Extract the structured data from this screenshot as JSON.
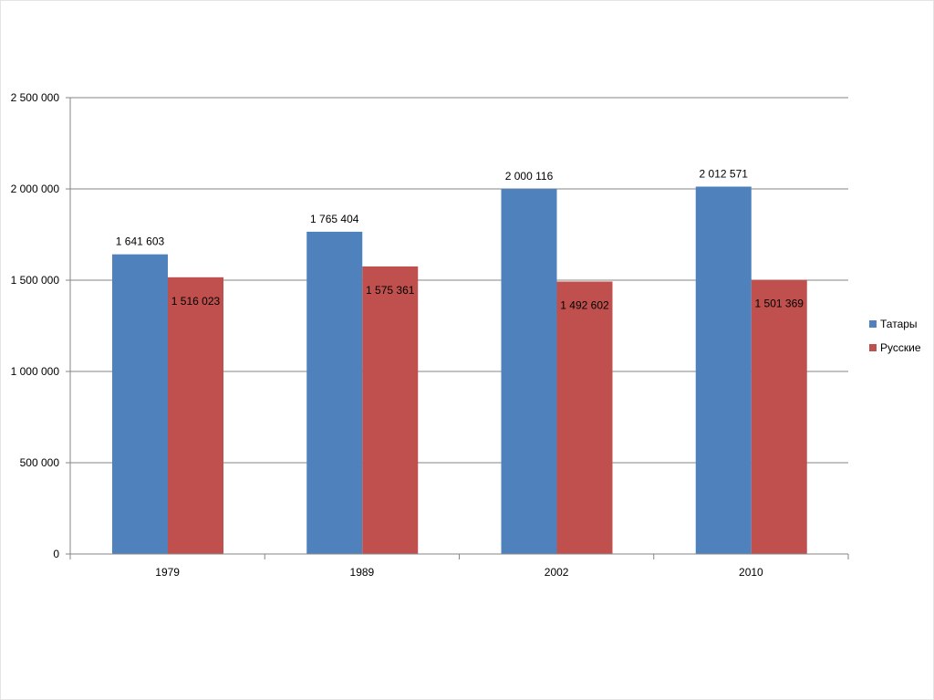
{
  "chart_data": {
    "type": "bar",
    "title": "",
    "xlabel": "",
    "ylabel": "",
    "categories": [
      "1979",
      "1989",
      "2002",
      "2010"
    ],
    "series": [
      {
        "name": "Татары",
        "color": "#4f81bd",
        "values": [
          1641603,
          1765404,
          2000116,
          2012571
        ],
        "labels": [
          "1 641 603",
          "1 765 404",
          "2 000 116",
          "2 012 571"
        ]
      },
      {
        "name": "Русские",
        "color": "#c0504d",
        "values": [
          1516023,
          1575361,
          1492602,
          1501369
        ],
        "labels": [
          "1 516 023",
          "1 575 361",
          "1 492 602",
          "1 501 369"
        ]
      }
    ],
    "ylim": [
      0,
      2500000
    ],
    "yticks": [
      0,
      500000,
      1000000,
      1500000,
      2000000,
      2500000
    ],
    "ytick_labels": [
      "0",
      "500 000",
      "1 000 000",
      "1 500 000",
      "2 000 000",
      "2 500 000"
    ],
    "grid": true,
    "legend_position": "right"
  }
}
